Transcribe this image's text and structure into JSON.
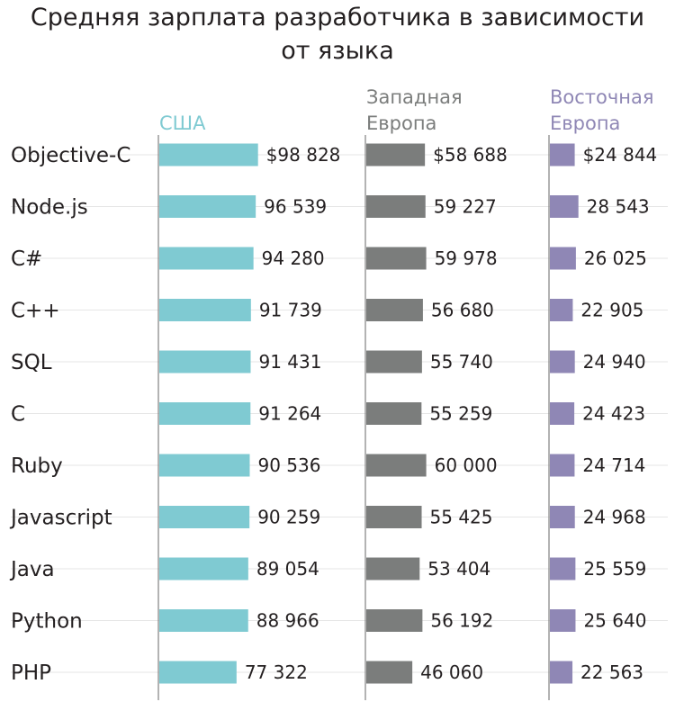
{
  "chart_data": {
    "type": "bar",
    "title": [
      "Средняя зарплата разработчика в зависимости",
      "от языка"
    ],
    "categories": [
      "Objective-C",
      "Node.js",
      "C#",
      "C++",
      "SQL",
      "C",
      "Ruby",
      "Javascript",
      "Java",
      "Python",
      "PHP"
    ],
    "series": [
      {
        "name": [
          "США"
        ],
        "color": "#7fcad2",
        "values": [
          98828,
          96539,
          94280,
          91739,
          91431,
          91264,
          90536,
          90259,
          89054,
          88966,
          77322
        ],
        "labels": [
          "$98 828",
          "96 539",
          "94 280",
          "91 739",
          "91 431",
          "91 264",
          "90 536",
          "90 259",
          "89 054",
          "88 966",
          "77 322"
        ]
      },
      {
        "name": [
          "Западная",
          "Европа"
        ],
        "color": "#7b7d7c",
        "values": [
          58688,
          59227,
          59978,
          56680,
          55740,
          55259,
          60000,
          55425,
          53404,
          56192,
          46060
        ],
        "labels": [
          "$58 688",
          "59 227",
          "59 978",
          "56 680",
          "55 740",
          "55 259",
          "60 000",
          "55 425",
          "53 404",
          "56 192",
          "46 060"
        ]
      },
      {
        "name": [
          "Восточная",
          "Европа"
        ],
        "color": "#8f87b5",
        "values": [
          24844,
          28543,
          26025,
          22905,
          24940,
          24423,
          24714,
          24968,
          25559,
          25640,
          22563
        ],
        "labels": [
          "$24 844",
          "28 543",
          "26 025",
          "22 905",
          "24 940",
          "24 423",
          "24 714",
          "24 968",
          "25 559",
          "25 640",
          "22 563"
        ]
      }
    ],
    "legend": "column-headers",
    "grid": true,
    "text_color": "#231f20",
    "grid_color": "#e6e6e6",
    "axis_color": "#8a8a8a"
  }
}
